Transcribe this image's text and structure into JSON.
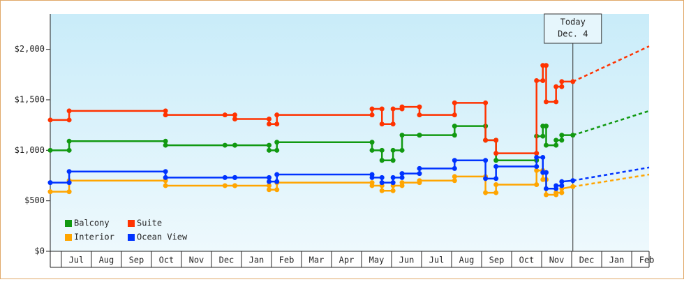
{
  "chart_data": {
    "type": "step",
    "x": [
      -0.37,
      0.26,
      0.26,
      3.47,
      3.47,
      5.45,
      5.78,
      5.78,
      6.92,
      6.92,
      7.18,
      7.18,
      10.35,
      10.35,
      10.68,
      10.68,
      11.05,
      11.05,
      11.35,
      11.35,
      11.93,
      11.93,
      13.1,
      13.1,
      14.13,
      14.13,
      14.48,
      14.48,
      15.83,
      15.83,
      16.04,
      16.04,
      16.15,
      16.15,
      16.48,
      16.48,
      16.67,
      16.67,
      17.04
    ],
    "projection_x": [
      17.04,
      19.58
    ],
    "series": [
      {
        "name": "Balcony",
        "color": "#119911",
        "values": [
          1000,
          1000,
          1090,
          1090,
          1050,
          1050,
          1050,
          1050,
          1050,
          1000,
          1000,
          1080,
          1080,
          1000,
          1000,
          900,
          900,
          1000,
          1000,
          1150,
          1150,
          1150,
          1150,
          1240,
          1240,
          1100,
          1100,
          900,
          900,
          1140,
          1140,
          1240,
          1240,
          1050,
          1050,
          1100,
          1100,
          1150,
          1150
        ],
        "projection": [
          1150,
          1390
        ]
      },
      {
        "name": "Suite",
        "color": "#ff3300",
        "values": [
          1300,
          1300,
          1390,
          1390,
          1350,
          1350,
          1350,
          1310,
          1310,
          1260,
          1260,
          1350,
          1350,
          1410,
          1410,
          1260,
          1260,
          1410,
          1410,
          1430,
          1430,
          1350,
          1350,
          1470,
          1470,
          1100,
          1100,
          970,
          970,
          1690,
          1690,
          1840,
          1840,
          1480,
          1480,
          1630,
          1630,
          1680,
          1680
        ],
        "projection": [
          1680,
          2030
        ]
      },
      {
        "name": "Interior",
        "color": "#ffa500",
        "values": [
          590,
          590,
          700,
          700,
          650,
          650,
          650,
          650,
          650,
          610,
          610,
          680,
          680,
          650,
          650,
          600,
          600,
          650,
          650,
          680,
          680,
          700,
          700,
          740,
          740,
          580,
          580,
          660,
          660,
          800,
          800,
          710,
          710,
          560,
          560,
          580,
          580,
          620,
          640
        ],
        "projection": [
          640,
          760
        ]
      },
      {
        "name": "Ocean View",
        "color": "#0033ff",
        "values": [
          680,
          680,
          790,
          790,
          730,
          730,
          730,
          730,
          730,
          690,
          690,
          760,
          760,
          730,
          730,
          680,
          680,
          730,
          730,
          770,
          770,
          820,
          820,
          900,
          900,
          720,
          720,
          840,
          840,
          930,
          930,
          780,
          780,
          620,
          620,
          650,
          650,
          690,
          700
        ],
        "projection": [
          700,
          830
        ]
      }
    ],
    "xlim": [
      -0.37,
      19.58
    ],
    "xticks": [
      {
        "value": 0.5,
        "label": "Jul"
      },
      {
        "value": 1.5,
        "label": "Aug"
      },
      {
        "value": 2.5,
        "label": "Sep"
      },
      {
        "value": 3.5,
        "label": "Oct"
      },
      {
        "value": 4.5,
        "label": "Nov"
      },
      {
        "value": 5.5,
        "label": "Dec"
      },
      {
        "value": 6.5,
        "label": "Jan"
      },
      {
        "value": 7.5,
        "label": "Feb"
      },
      {
        "value": 8.5,
        "label": "Mar"
      },
      {
        "value": 9.5,
        "label": "Apr"
      },
      {
        "value": 10.5,
        "label": "May"
      },
      {
        "value": 11.5,
        "label": "Jun"
      },
      {
        "value": 12.5,
        "label": "Jul"
      },
      {
        "value": 13.5,
        "label": "Aug"
      },
      {
        "value": 14.5,
        "label": "Sep"
      },
      {
        "value": 15.5,
        "label": "Oct"
      },
      {
        "value": 16.5,
        "label": "Nov"
      },
      {
        "value": 17.5,
        "label": "Dec"
      },
      {
        "value": 18.5,
        "label": "Jan"
      },
      {
        "value": 19.5,
        "label": "Feb"
      }
    ],
    "ylim": [
      0,
      2350
    ],
    "yticks": [
      {
        "value": 0,
        "label": "$0"
      },
      {
        "value": 500,
        "label": "$500"
      },
      {
        "value": 1000,
        "label": "$1,000"
      },
      {
        "value": 1500,
        "label": "$1,500"
      },
      {
        "value": 2000,
        "label": "$2,000"
      }
    ],
    "annotation": {
      "x": 17.04,
      "lines": [
        "Today",
        "Dec. 4"
      ]
    },
    "legend": "lower left"
  }
}
